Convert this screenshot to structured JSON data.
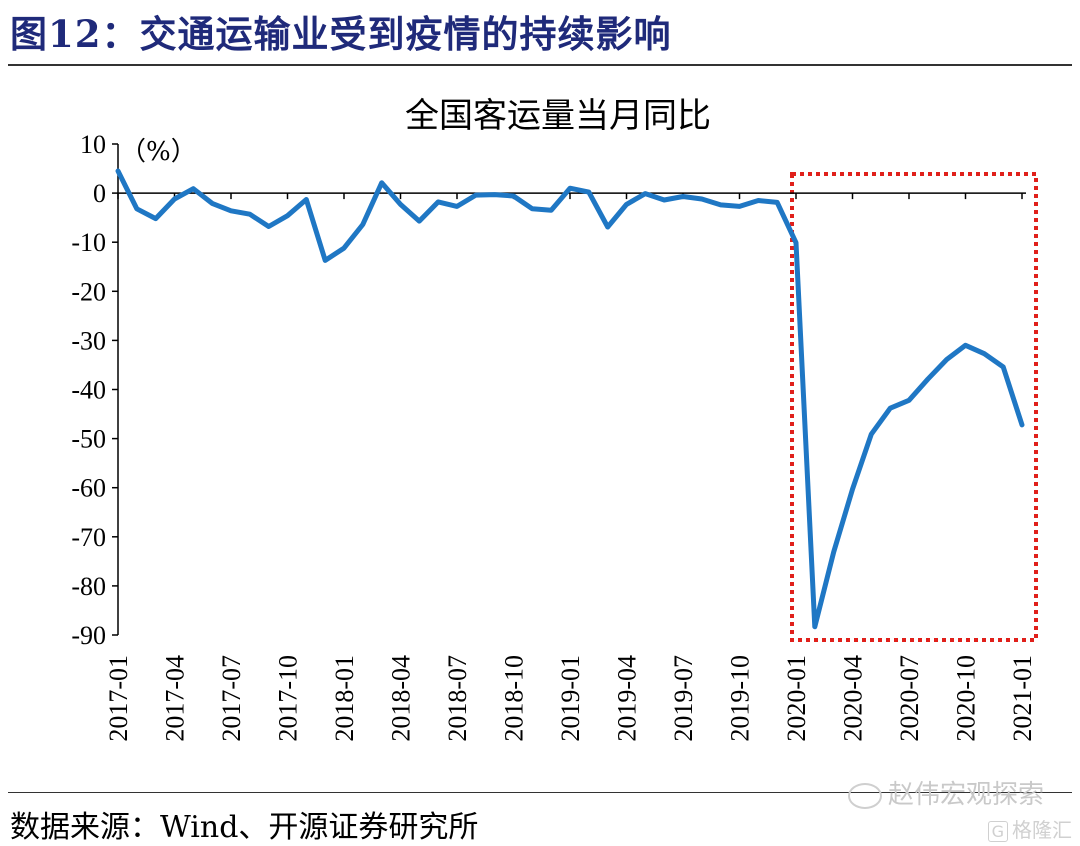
{
  "figure": {
    "title": "图12：交通运输业受到疫情的持续影响",
    "source": "数据来源：Wind、开源证券研究所"
  },
  "watermark": {
    "text": "赵伟宏观探索",
    "icon": "wechat-icon"
  },
  "logo": {
    "box": "G",
    "text": "格隆汇"
  },
  "colors": {
    "title": "#1f2a7a",
    "line": "#1f77c4",
    "highlight": "#e0201b"
  },
  "chart_data": {
    "type": "line",
    "title": "全国客运量当月同比",
    "ylabel": "（%）",
    "ylim": [
      -90,
      10
    ],
    "yticks": [
      10,
      0,
      -10,
      -20,
      -30,
      -40,
      -50,
      -60,
      -70,
      -80,
      -90
    ],
    "xticks": [
      "2017-01",
      "2017-04",
      "2017-07",
      "2017-10",
      "2018-01",
      "2018-04",
      "2018-07",
      "2018-10",
      "2019-01",
      "2019-04",
      "2019-07",
      "2019-10",
      "2020-01",
      "2020-04",
      "2020-07",
      "2020-10",
      "2021-01"
    ],
    "grid": false,
    "series": [
      {
        "x": [
          "2017-01",
          "2017-02",
          "2017-03",
          "2017-04",
          "2017-05",
          "2017-06",
          "2017-07",
          "2017-08",
          "2017-09",
          "2017-10",
          "2017-11",
          "2017-12",
          "2018-01",
          "2018-02",
          "2018-03",
          "2018-04",
          "2018-05",
          "2018-06",
          "2018-07",
          "2018-08",
          "2018-09",
          "2018-10",
          "2018-11",
          "2018-12",
          "2019-01",
          "2019-02",
          "2019-03",
          "2019-04",
          "2019-05",
          "2019-06",
          "2019-07",
          "2019-08",
          "2019-09",
          "2019-10",
          "2019-11",
          "2019-12",
          "2020-01",
          "2020-02",
          "2020-03",
          "2020-04",
          "2020-05",
          "2020-06",
          "2020-07",
          "2020-08",
          "2020-09",
          "2020-10",
          "2020-11",
          "2020-12",
          "2021-01"
        ],
        "values": [
          4.5,
          -3.2,
          -5.2,
          -1.2,
          0.9,
          -2.1,
          -3.6,
          -4.3,
          -6.8,
          -4.6,
          -1.3,
          -13.7,
          -11.2,
          -6.4,
          2.1,
          -2.3,
          -5.7,
          -1.8,
          -2.7,
          -0.4,
          -0.3,
          -0.6,
          -3.2,
          -3.5,
          1.0,
          0.2,
          -6.9,
          -2.3,
          -0.1,
          -1.4,
          -0.7,
          -1.2,
          -2.4,
          -2.7,
          -1.5,
          -1.9,
          -10.1,
          -88.3,
          -73.1,
          -60.3,
          -49.1,
          -43.8,
          -42.2,
          -37.9,
          -33.9,
          -31.0,
          -32.7,
          -35.4,
          -47.2
        ]
      }
    ],
    "highlight": {
      "x_from": "2020-01",
      "x_to": "2021-01",
      "style": "dotted-rectangle"
    }
  }
}
